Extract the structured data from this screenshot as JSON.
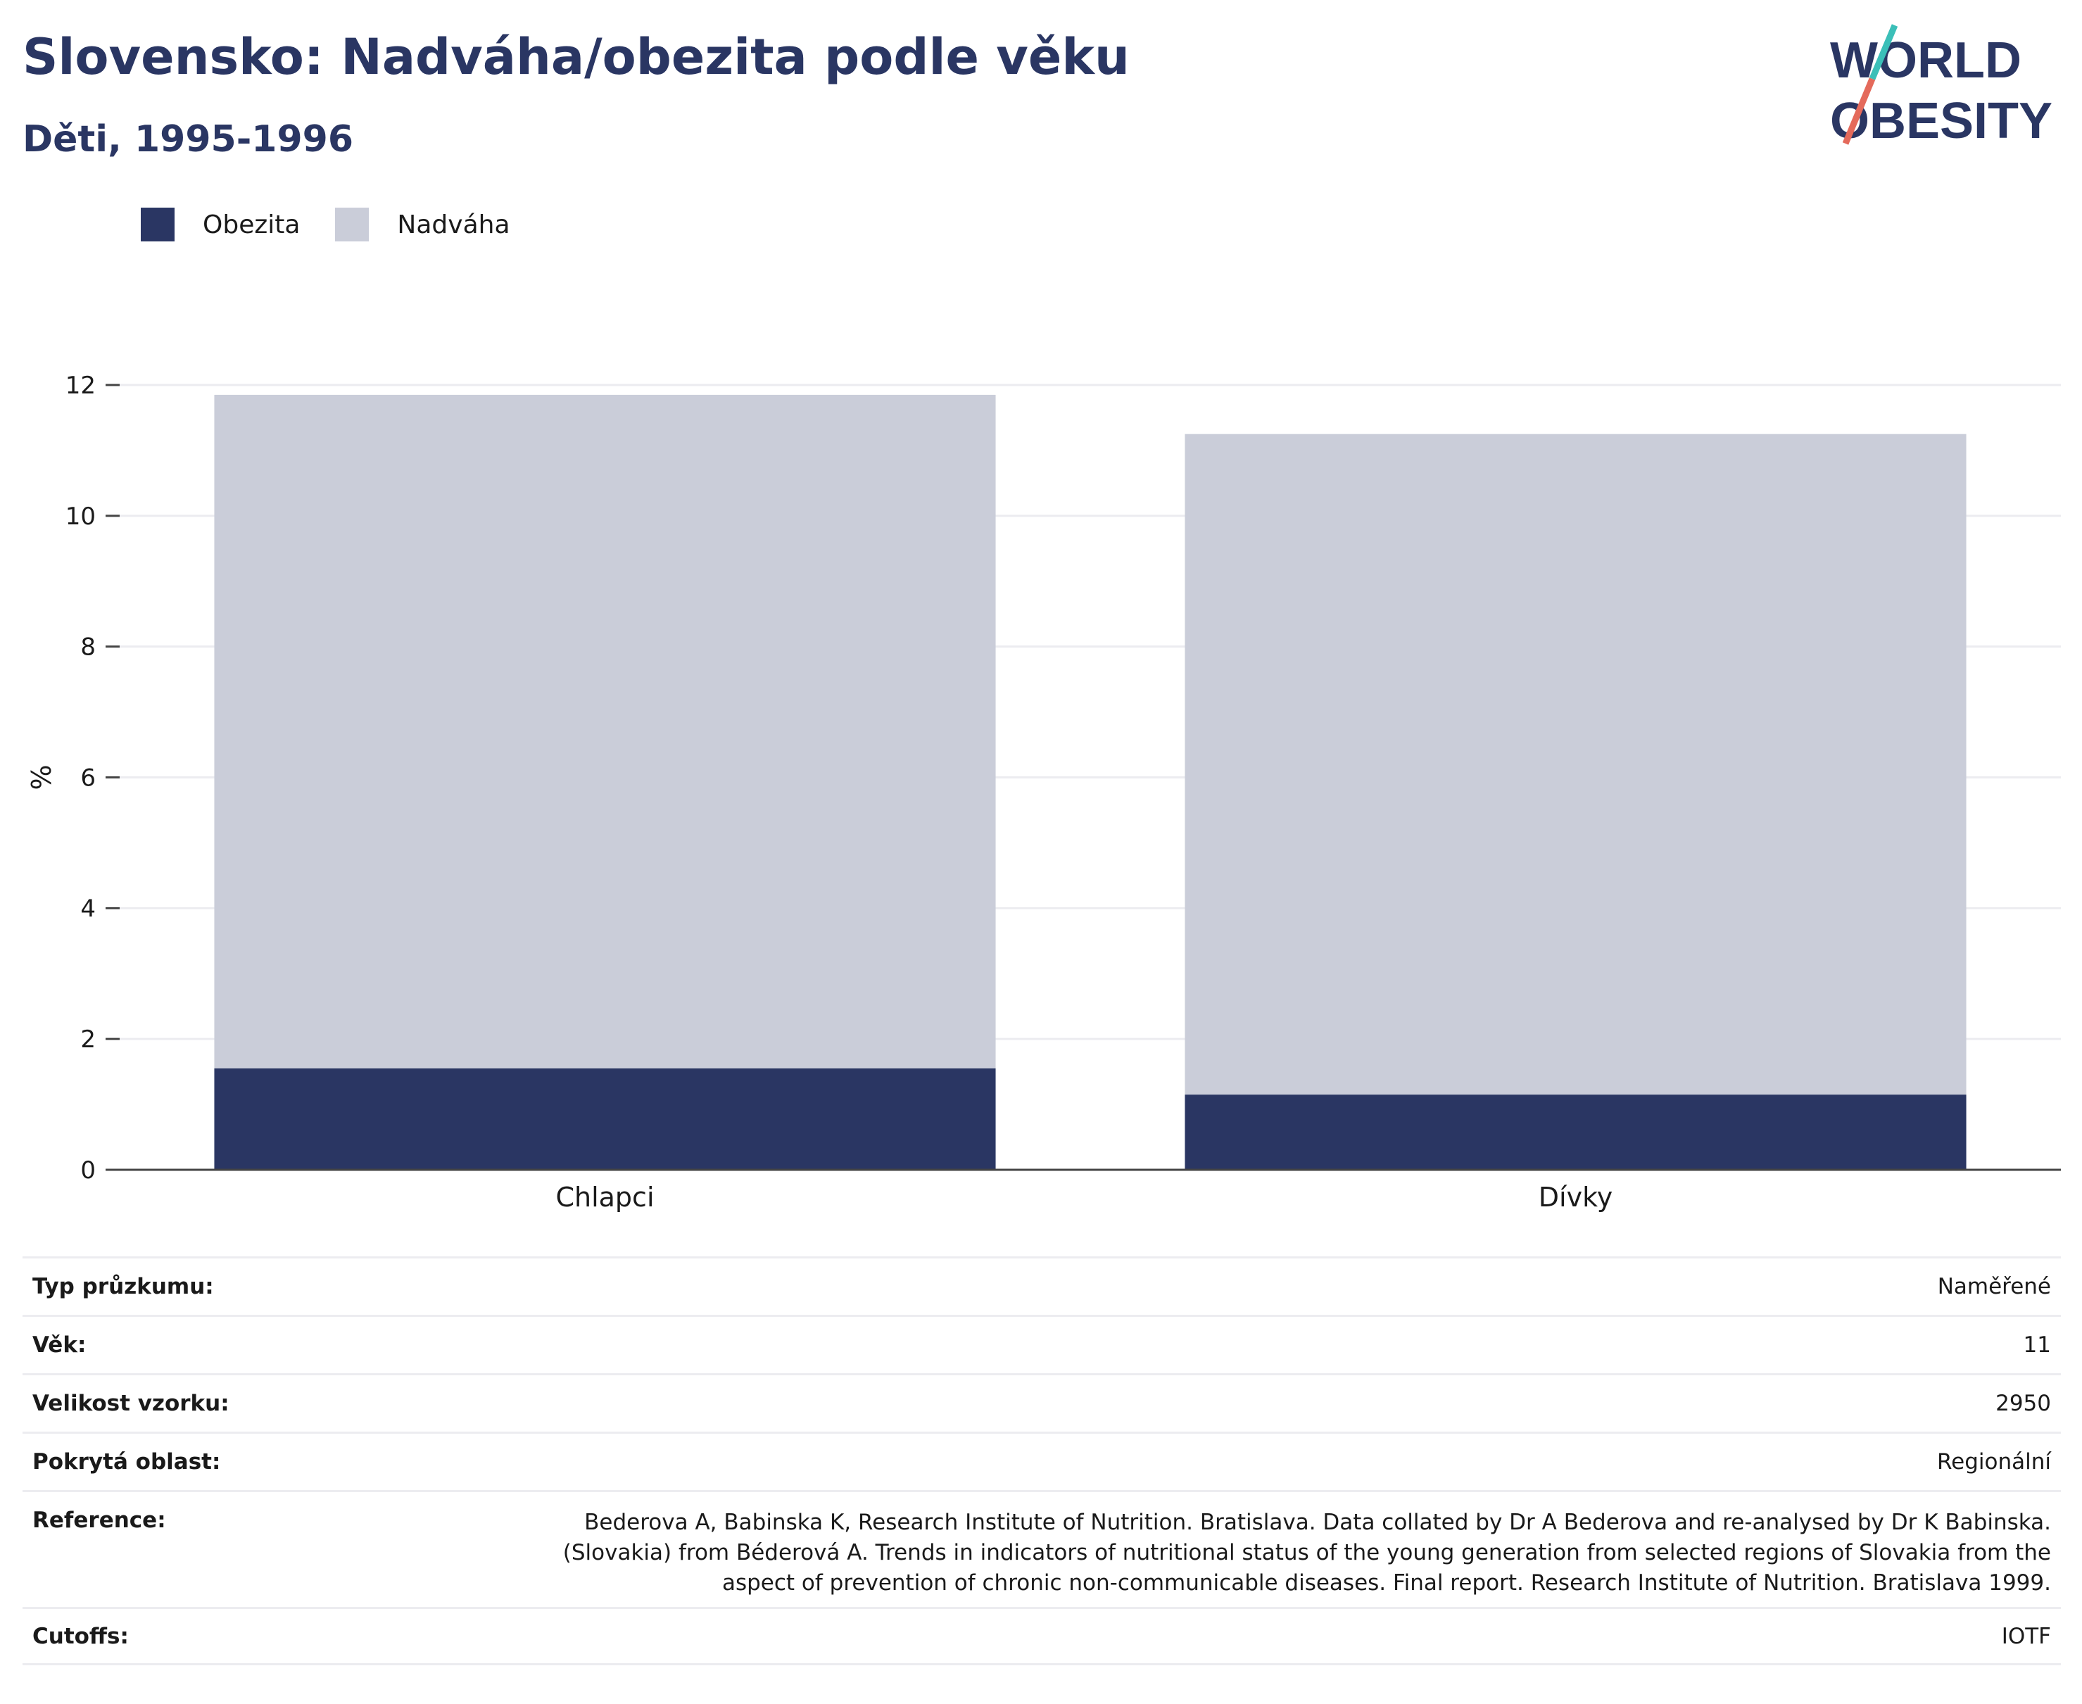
{
  "header": {
    "title": "Slovensko: Nadváha/obezita podle věku",
    "subtitle": "Děti, 1995-1996"
  },
  "logo": {
    "line1": "WORLD",
    "line2": "OBESITY"
  },
  "legend": [
    {
      "label": "Obezita",
      "color": "#2a3663"
    },
    {
      "label": "Nadváha",
      "color": "#cacdd9"
    }
  ],
  "chart_data": {
    "type": "bar",
    "stacked": true,
    "categories": [
      "Chlapci",
      "Dívky"
    ],
    "series": [
      {
        "name": "Obezita",
        "values": [
          1.55,
          1.15
        ],
        "color": "#2a3663"
      },
      {
        "name": "Nadváha",
        "values": [
          10.3,
          10.1
        ],
        "color": "#cacdd9"
      }
    ],
    "ylabel": "%",
    "ylim": [
      0,
      12
    ],
    "yticks": [
      0,
      2,
      4,
      6,
      8,
      10,
      12
    ],
    "grid": true,
    "legend_position": "top-left"
  },
  "info": {
    "survey_type": {
      "label": "Typ průzkumu:",
      "value": "Naměřené"
    },
    "age": {
      "label": "Věk:",
      "value": "11"
    },
    "sample_size": {
      "label": "Velikost vzorku:",
      "value": "2950"
    },
    "area": {
      "label": "Pokrytá oblast:",
      "value": "Regionální"
    },
    "reference": {
      "label": "Reference:",
      "lines": [
        "Bederova A, Babinska K, Research Institute of Nutrition. Bratislava. Data collated by Dr A Bederova and re-analysed by Dr K Babinska.",
        "(Slovakia) from Béderová A. Trends in indicators of nutritional status of the young generation from selected regions of Slovakia from the",
        "aspect of prevention of chronic non-communicable diseases. Final report. Research Institute of Nutrition. Bratislava 1999."
      ]
    },
    "cutoffs": {
      "label": "Cutoffs:",
      "value": "IOTF"
    }
  }
}
